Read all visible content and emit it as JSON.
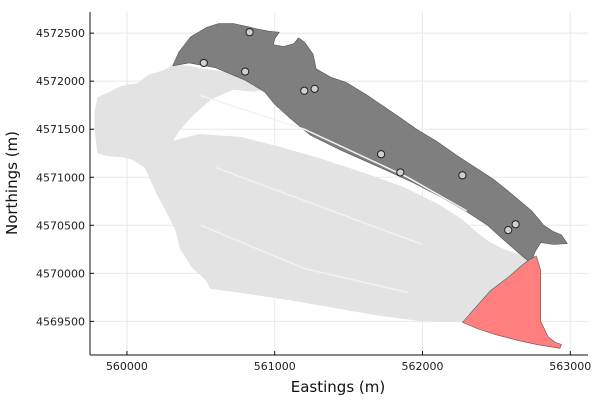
{
  "chart_data": {
    "type": "scatter",
    "xlabel": "Eastings (m)",
    "ylabel": "Northings (m)",
    "xlim": [
      559750,
      563120
    ],
    "ylim": [
      4569150,
      4572720
    ],
    "xticks": [
      560000,
      561000,
      562000,
      563000
    ],
    "yticks": [
      4569500,
      4570000,
      4570500,
      4571000,
      4571500,
      4572000,
      4572500
    ],
    "grid": true,
    "legend": "none",
    "colors": {
      "light_region": "#e3e3e3",
      "dark_region": "#7f7f7f",
      "red_region": "#ff7f7f",
      "point_fill": "#d0d0d0",
      "point_stroke": "#222222"
    },
    "regions": [
      {
        "name": "light-region",
        "color": "#e3e3e3",
        "polygon": [
          [
            560310,
            4571380
          ],
          [
            560490,
            4571450
          ],
          [
            560770,
            4571420
          ],
          [
            561000,
            4571330
          ],
          [
            561300,
            4571200
          ],
          [
            561600,
            4571050
          ],
          [
            561870,
            4570900
          ],
          [
            562110,
            4570720
          ],
          [
            562270,
            4570560
          ],
          [
            562350,
            4570450
          ],
          [
            562450,
            4570330
          ],
          [
            562550,
            4570250
          ],
          [
            562670,
            4570190
          ],
          [
            562770,
            4570170
          ],
          [
            562800,
            4570020
          ],
          [
            562700,
            4569920
          ],
          [
            562600,
            4569830
          ],
          [
            562500,
            4569750
          ],
          [
            562400,
            4569660
          ],
          [
            562310,
            4569570
          ],
          [
            562260,
            4569490
          ],
          [
            562000,
            4569500
          ],
          [
            561700,
            4569560
          ],
          [
            561400,
            4569640
          ],
          [
            561100,
            4569720
          ],
          [
            560800,
            4569790
          ],
          [
            560560,
            4569840
          ],
          [
            560540,
            4569920
          ],
          [
            560440,
            4570060
          ],
          [
            560360,
            4570250
          ],
          [
            560330,
            4570440
          ],
          [
            560280,
            4570600
          ],
          [
            560200,
            4570830
          ],
          [
            560120,
            4571100
          ],
          [
            560040,
            4571180
          ],
          [
            559960,
            4571210
          ],
          [
            559870,
            4571220
          ],
          [
            559800,
            4571250
          ],
          [
            559780,
            4571510
          ],
          [
            559780,
            4571670
          ],
          [
            559800,
            4571830
          ],
          [
            559870,
            4571880
          ],
          [
            559960,
            4571950
          ],
          [
            560070,
            4571980
          ],
          [
            560150,
            4572070
          ],
          [
            560240,
            4572110
          ],
          [
            560320,
            4572170
          ],
          [
            560420,
            4572160
          ],
          [
            560510,
            4572130
          ],
          [
            560620,
            4572110
          ],
          [
            560760,
            4572070
          ],
          [
            560900,
            4572020
          ],
          [
            561040,
            4571950
          ],
          [
            560860,
            4571890
          ],
          [
            560720,
            4571910
          ],
          [
            560570,
            4571810
          ],
          [
            560430,
            4571620
          ],
          [
            560350,
            4571470
          ]
        ]
      },
      {
        "name": "dark-region",
        "color": "#7f7f7f",
        "polygon": [
          [
            560310,
            4572160
          ],
          [
            560350,
            4572300
          ],
          [
            560430,
            4572460
          ],
          [
            560540,
            4572560
          ],
          [
            560620,
            4572600
          ],
          [
            560720,
            4572600
          ],
          [
            560810,
            4572570
          ],
          [
            560890,
            4572540
          ],
          [
            560960,
            4572520
          ],
          [
            561030,
            4572510
          ],
          [
            561000,
            4572440
          ],
          [
            560990,
            4572380
          ],
          [
            561060,
            4572360
          ],
          [
            561130,
            4572390
          ],
          [
            561160,
            4572450
          ],
          [
            561200,
            4572410
          ],
          [
            561260,
            4572280
          ],
          [
            561280,
            4572130
          ],
          [
            561380,
            4572040
          ],
          [
            561480,
            4571990
          ],
          [
            561620,
            4571860
          ],
          [
            561820,
            4571650
          ],
          [
            561960,
            4571500
          ],
          [
            562100,
            4571370
          ],
          [
            562230,
            4571230
          ],
          [
            562350,
            4571110
          ],
          [
            562480,
            4570980
          ],
          [
            562600,
            4570830
          ],
          [
            562740,
            4570650
          ],
          [
            562820,
            4570500
          ],
          [
            562880,
            4570440
          ],
          [
            562940,
            4570400
          ],
          [
            562980,
            4570310
          ],
          [
            562890,
            4570300
          ],
          [
            562800,
            4570320
          ],
          [
            562760,
            4570220
          ],
          [
            562740,
            4570120
          ],
          [
            562770,
            4570060
          ],
          [
            562660,
            4570200
          ],
          [
            562540,
            4570360
          ],
          [
            562440,
            4570500
          ],
          [
            562300,
            4570640
          ],
          [
            562130,
            4570790
          ],
          [
            561930,
            4570950
          ],
          [
            561700,
            4571110
          ],
          [
            561450,
            4571280
          ],
          [
            561240,
            4571440
          ],
          [
            561100,
            4571620
          ],
          [
            561000,
            4571760
          ],
          [
            560930,
            4571890
          ],
          [
            560800,
            4572010
          ],
          [
            560600,
            4572140
          ],
          [
            560420,
            4572190
          ]
        ]
      },
      {
        "name": "red-region",
        "color": "#ff7f7f",
        "polygon": [
          [
            562270,
            4569490
          ],
          [
            562460,
            4569820
          ],
          [
            562580,
            4569960
          ],
          [
            562670,
            4570080
          ],
          [
            562720,
            4570140
          ],
          [
            562770,
            4570180
          ],
          [
            562800,
            4570030
          ],
          [
            562800,
            4569740
          ],
          [
            562800,
            4569500
          ],
          [
            562850,
            4569340
          ],
          [
            562900,
            4569280
          ],
          [
            562940,
            4569260
          ],
          [
            562930,
            4569220
          ],
          [
            562850,
            4569240
          ],
          [
            562770,
            4569260
          ],
          [
            562650,
            4569300
          ],
          [
            562500,
            4569360
          ],
          [
            562380,
            4569420
          ]
        ]
      }
    ],
    "points": [
      {
        "x": 560830,
        "y": 4572510
      },
      {
        "x": 560520,
        "y": 4572190
      },
      {
        "x": 560800,
        "y": 4572100
      },
      {
        "x": 561200,
        "y": 4571900
      },
      {
        "x": 561270,
        "y": 4571920
      },
      {
        "x": 561720,
        "y": 4571240
      },
      {
        "x": 561850,
        "y": 4571050
      },
      {
        "x": 562270,
        "y": 4571020
      },
      {
        "x": 562580,
        "y": 4570450
      },
      {
        "x": 562630,
        "y": 4570510
      }
    ]
  }
}
